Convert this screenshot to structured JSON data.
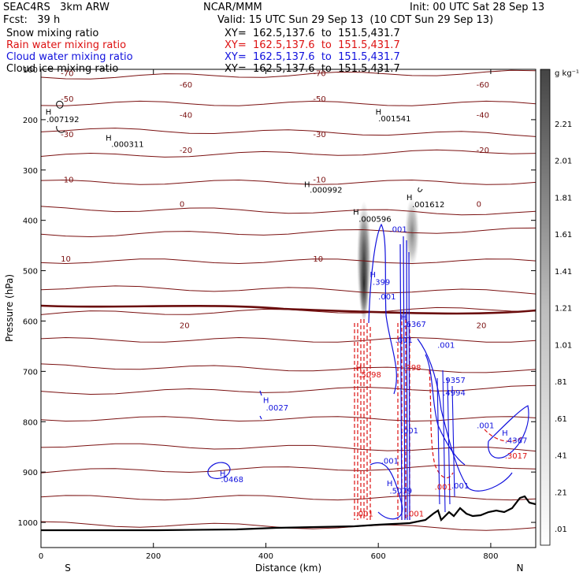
{
  "header": {
    "model": "SEAC4RS   3km ARW",
    "center": "NCAR/MMM",
    "init": "Init: 00 UTC Sat 28 Sep 13",
    "fcst": "Fcst:   39 h",
    "valid": "Valid: 15 UTC Sun 29 Sep 13  (10 CDT Sun 29 Sep 13)",
    "fields": [
      {
        "name": "Snow mixing ratio",
        "xy": "XY=  162.5,137.6  to  151.5,431.7",
        "color": "#000000"
      },
      {
        "name": "Rain water mixing ratio",
        "xy": "XY=  162.5,137.6  to  151.5,431.7",
        "color": "#dd1111"
      },
      {
        "name": "Cloud water mixing ratio",
        "xy": "XY=  162.5,137.6  to  151.5,431.7",
        "color": "#1111dd"
      },
      {
        "name": "Cloud ice mixing ratio",
        "xy": "XY=  162.5,137.6  to  151.5,431.7",
        "color": "#000000"
      }
    ]
  },
  "chart_data": {
    "type": "cross-section",
    "xlabel": "Distance (km)",
    "ylabel": "Pressure (hPa)",
    "xlim": [
      0,
      880
    ],
    "ylim": [
      1050,
      100
    ],
    "x_ticks": [
      "0",
      "200",
      "400",
      "600",
      "800"
    ],
    "y_ticks": [
      "100",
      "200",
      "300",
      "400",
      "500",
      "600",
      "700",
      "800",
      "900",
      "1000"
    ],
    "x_end_labels": {
      "left": "S",
      "right": "N"
    },
    "colorbar": {
      "units": "g kg⁻¹",
      "labels": [
        "2.21",
        "2.01",
        "1.81",
        "1.61",
        "1.41",
        "1.21",
        "1.01",
        ".81",
        ".61",
        ".41",
        ".21",
        ".01"
      ]
    },
    "temperature_contours": [
      {
        "label": "-70",
        "p": 107,
        "color": "#7a1010"
      },
      {
        "label": "-60",
        "p": 130,
        "color": "#7a1010"
      },
      {
        "label": "-50",
        "p": 158,
        "color": "#7a1010"
      },
      {
        "label": "-40",
        "p": 190,
        "color": "#7a1010"
      },
      {
        "label": "-30",
        "p": 228,
        "color": "#7a1010"
      },
      {
        "label": "-20",
        "p": 260,
        "color": "#7a1010"
      },
      {
        "label": "-10",
        "p": 318,
        "color": "#7a1010"
      },
      {
        "label": "0",
        "p": 367,
        "color": "#7a1010"
      },
      {
        "label": "10",
        "p": 476,
        "color": "#7a1010"
      },
      {
        "label": "20",
        "p": 608,
        "color": "#7a1010"
      }
    ],
    "annotations": [
      {
        "text": "H",
        "x": 8,
        "p": 190,
        "color": "#000000"
      },
      {
        "text": ".007192",
        "x": 10,
        "p": 205,
        "color": "#000000"
      },
      {
        "text": "H",
        "x": 115,
        "p": 242,
        "color": "#000000"
      },
      {
        "text": ".000311",
        "x": 125,
        "p": 254,
        "color": "#000000"
      },
      {
        "text": "H",
        "x": 595,
        "p": 190,
        "color": "#000000"
      },
      {
        "text": ".001541",
        "x": 600,
        "p": 203,
        "color": "#000000"
      },
      {
        "text": "H",
        "x": 468,
        "p": 334,
        "color": "#000000"
      },
      {
        "text": ".000992",
        "x": 478,
        "p": 345,
        "color": "#000000"
      },
      {
        "text": "H",
        "x": 650,
        "p": 360,
        "color": "#000000"
      },
      {
        "text": ".001612",
        "x": 660,
        "p": 374,
        "color": "#000000"
      },
      {
        "text": "H",
        "x": 555,
        "p": 389,
        "color": "#000000"
      },
      {
        "text": ".000596",
        "x": 565,
        "p": 403,
        "color": "#000000"
      },
      {
        "text": ".001",
        "x": 620,
        "p": 423,
        "color": "#1111dd"
      },
      {
        "text": "H",
        "x": 585,
        "p": 513,
        "color": "#1111dd"
      },
      {
        "text": ".399",
        "x": 590,
        "p": 528,
        "color": "#1111dd"
      },
      {
        "text": ".001",
        "x": 600,
        "p": 557,
        "color": "#1111dd"
      },
      {
        "text": "H",
        "x": 640,
        "p": 598,
        "color": "#1111dd"
      },
      {
        "text": ".6367",
        "x": 645,
        "p": 612,
        "color": "#1111dd"
      },
      {
        "text": ".001",
        "x": 630,
        "p": 643,
        "color": "#1111dd"
      },
      {
        "text": ".001",
        "x": 705,
        "p": 653,
        "color": "#1111dd"
      },
      {
        "text": "H",
        "x": 560,
        "p": 698,
        "color": "#dd1111"
      },
      {
        "text": ".5098",
        "x": 565,
        "p": 712,
        "color": "#dd1111"
      },
      {
        "text": ".398",
        "x": 645,
        "p": 698,
        "color": "#dd1111"
      },
      {
        "text": ".9357",
        "x": 715,
        "p": 723,
        "color": "#1111dd"
      },
      {
        "text": ".4994",
        "x": 715,
        "p": 748,
        "color": "#1111dd"
      },
      {
        "text": "H",
        "x": 395,
        "p": 763,
        "color": "#1111dd"
      },
      {
        "text": ".0027",
        "x": 400,
        "p": 778,
        "color": "#1111dd"
      },
      {
        "text": ".001",
        "x": 640,
        "p": 823,
        "color": "#1111dd"
      },
      {
        "text": ".001",
        "x": 775,
        "p": 813,
        "color": "#1111dd"
      },
      {
        "text": "H",
        "x": 820,
        "p": 828,
        "color": "#1111dd"
      },
      {
        "text": ".4367",
        "x": 825,
        "p": 843,
        "color": "#1111dd"
      },
      {
        "text": ".3017",
        "x": 825,
        "p": 873,
        "color": "#dd1111"
      },
      {
        "text": ".001",
        "x": 605,
        "p": 883,
        "color": "#1111dd"
      },
      {
        "text": "H",
        "x": 318,
        "p": 908,
        "color": "#1111dd"
      },
      {
        "text": ".0468",
        "x": 320,
        "p": 920,
        "color": "#1111dd"
      },
      {
        "text": "H",
        "x": 615,
        "p": 928,
        "color": "#1111dd"
      },
      {
        "text": ".5079",
        "x": 620,
        "p": 943,
        "color": "#1111dd"
      },
      {
        "text": ".001",
        "x": 700,
        "p": 935,
        "color": "#dd1111"
      },
      {
        "text": ".001",
        "x": 730,
        "p": 933,
        "color": "#1111dd"
      },
      {
        "text": ".001",
        "x": 560,
        "p": 988,
        "color": "#dd1111"
      },
      {
        "text": ".001",
        "x": 650,
        "p": 988,
        "color": "#dd1111"
      }
    ]
  }
}
